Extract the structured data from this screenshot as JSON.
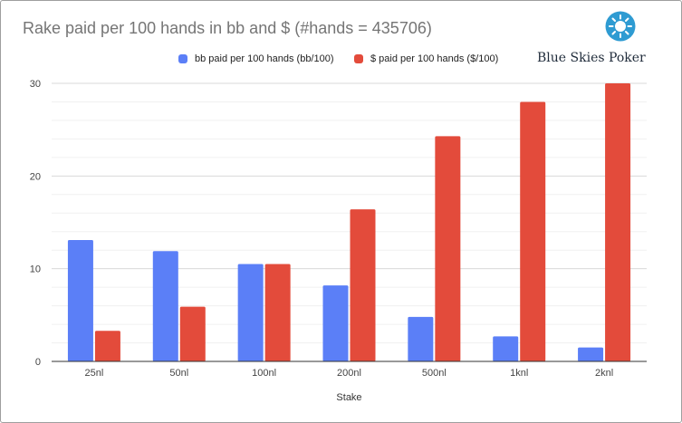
{
  "chart_data": {
    "type": "bar",
    "title": "Rake paid per 100 hands in bb and $ (#hands = 435706)",
    "xlabel": "Stake",
    "ylabel": "",
    "ylim": [
      0,
      30
    ],
    "yticks": [
      0,
      10,
      20,
      30
    ],
    "grid": true,
    "legend_position": "top",
    "categories": [
      "25nl",
      "50nl",
      "100nl",
      "200nl",
      "500nl",
      "1knl",
      "2knl"
    ],
    "series": [
      {
        "name": "bb paid per 100 hands (bb/100)",
        "color": "#5b7ff7",
        "values": [
          13.1,
          11.9,
          10.5,
          8.2,
          4.8,
          2.7,
          1.5
        ]
      },
      {
        "name": "$ paid per 100 hands ($/100)",
        "color": "#e34b3b",
        "values": [
          3.3,
          5.9,
          10.5,
          16.4,
          24.3,
          28.0,
          30.0
        ]
      }
    ]
  },
  "branding": {
    "logo_text": "Blue Skies Poker",
    "logo_icon": "sun-icon",
    "logo_color": "#2e9bd2"
  }
}
